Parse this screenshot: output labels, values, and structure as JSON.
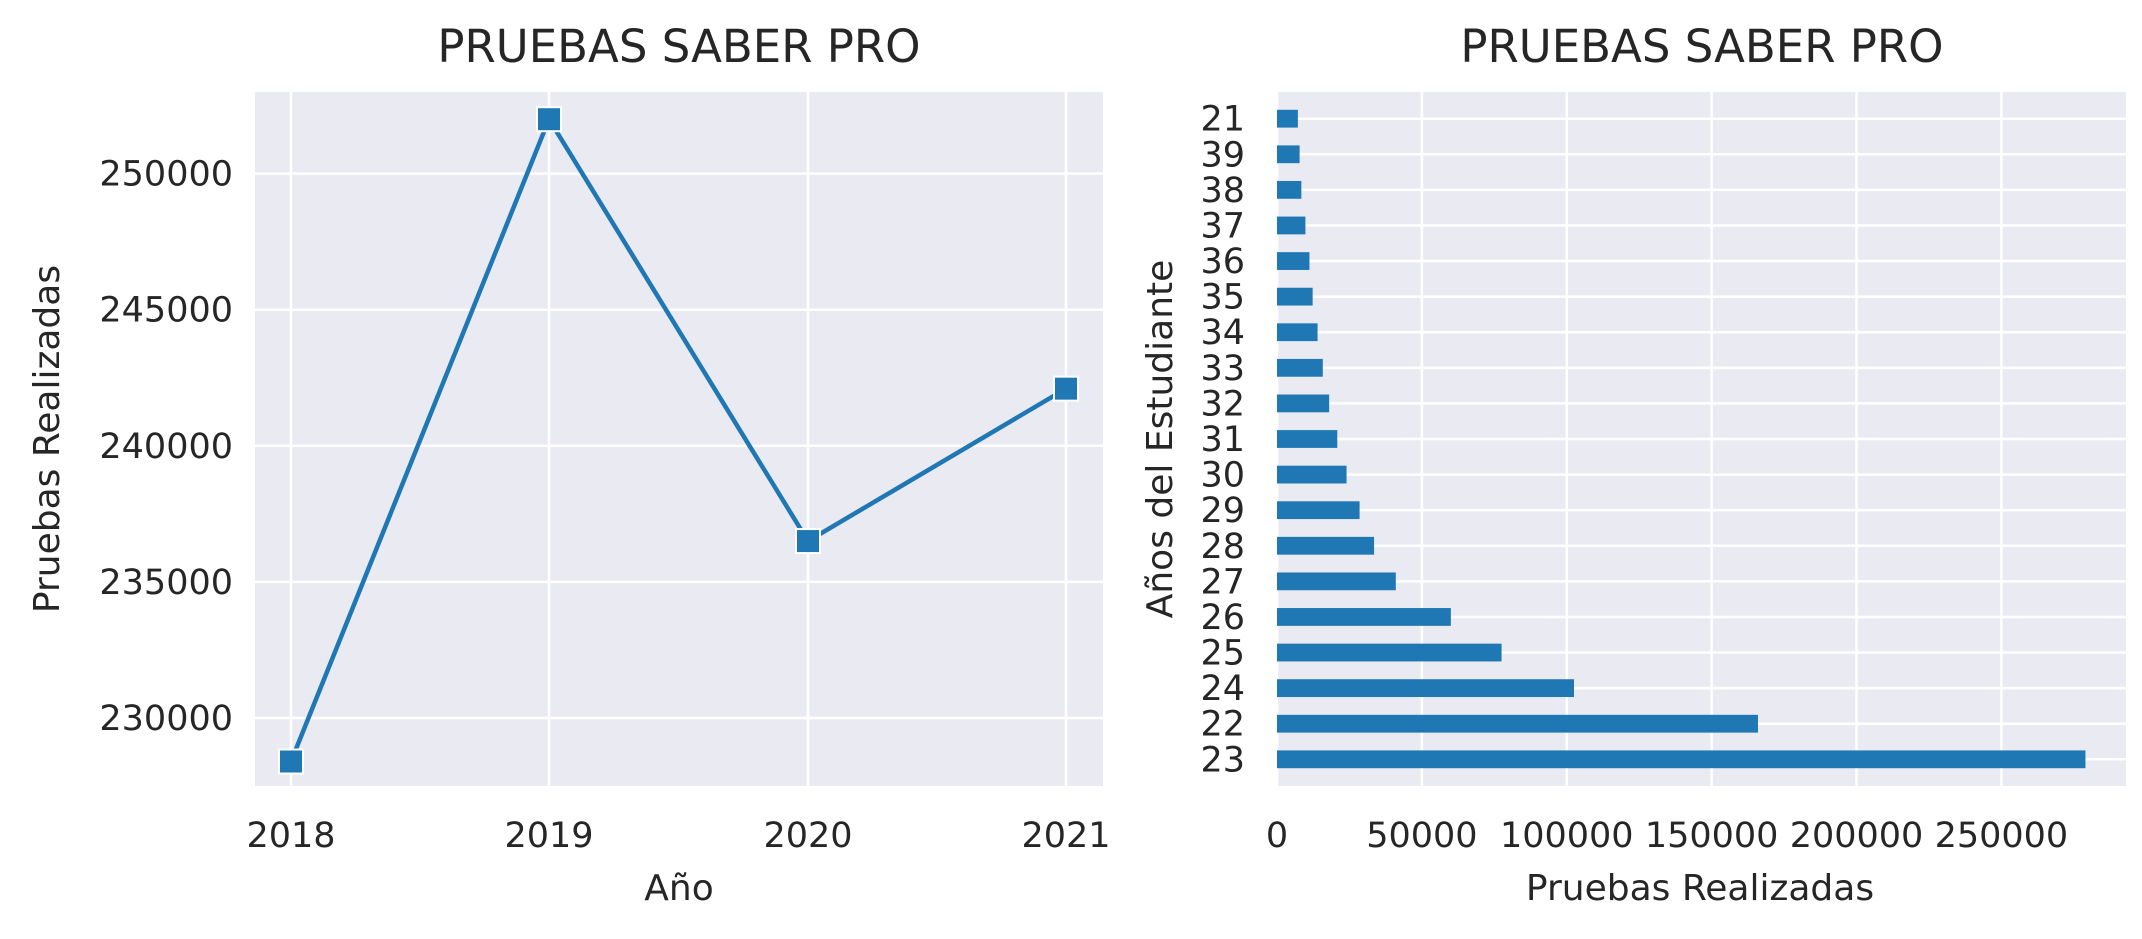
{
  "chart_data": [
    {
      "type": "line",
      "title": "PRUEBAS SABER PRO",
      "xlabel": "Año",
      "ylabel": "Pruebas Realizadas",
      "x": [
        2018,
        2019,
        2020,
        2021
      ],
      "y": [
        228400,
        252000,
        236500,
        242100
      ],
      "x_ticks": [
        "2018",
        "2019",
        "2020",
        "2021"
      ],
      "y_ticks": [
        230000,
        235000,
        240000,
        245000,
        250000
      ],
      "ylim": [
        227500,
        253000
      ],
      "marker": "square",
      "color": "#1f77b4",
      "grid": true,
      "background": "#eaeaf2"
    },
    {
      "type": "bar",
      "orientation": "horizontal",
      "title": "PRUEBAS SABER PRO",
      "xlabel": "Pruebas Realizadas",
      "ylabel": "Años del Estudiante",
      "categories": [
        "23",
        "22",
        "24",
        "25",
        "26",
        "27",
        "28",
        "29",
        "30",
        "31",
        "32",
        "33",
        "34",
        "35",
        "36",
        "37",
        "38",
        "39",
        "21"
      ],
      "values": [
        279000,
        166000,
        102500,
        77500,
        60000,
        41000,
        33500,
        28500,
        24000,
        20800,
        18000,
        15800,
        14000,
        12300,
        11200,
        9800,
        8400,
        7800,
        7200
      ],
      "x_ticks": [
        0,
        50000,
        100000,
        150000,
        200000,
        250000
      ],
      "xlim": [
        0,
        293000
      ],
      "color": "#1f77b4",
      "grid": true,
      "background": "#eaeaf2"
    }
  ]
}
